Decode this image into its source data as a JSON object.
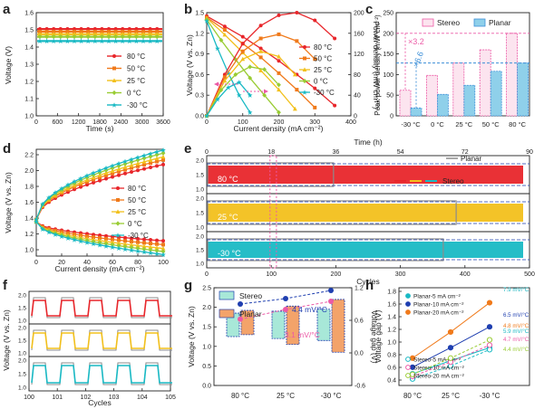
{
  "colors": {
    "80": "#e8262b",
    "50": "#f07a1b",
    "25": "#f2c01c",
    "0": "#99cc33",
    "-30": "#19b9c4",
    "stereo": "#ec5aa6",
    "planar": "#3d8fd8",
    "blue_dark": "#1f3fb0",
    "planar_grey": "#8c8c8c"
  },
  "chart_data": [
    {
      "panel": "a",
      "type": "line",
      "xlabel": "Time (s)",
      "ylabel": "Voltage (V)",
      "xlim": [
        0,
        3600
      ],
      "ylim": [
        1.0,
        1.6
      ],
      "xticks": [
        "0",
        "600",
        "1200",
        "1800",
        "2400",
        "3000",
        "3600"
      ],
      "yticks": [
        "1.0",
        "1.1",
        "1.2",
        "1.3",
        "1.4",
        "1.5",
        "1.6"
      ],
      "series": [
        {
          "name": "80 °C",
          "key": "80",
          "values": [
            1.505,
            1.505
          ]
        },
        {
          "name": "50 °C",
          "key": "50",
          "values": [
            1.49,
            1.49
          ]
        },
        {
          "name": "25 °C",
          "key": "25",
          "values": [
            1.475,
            1.475
          ]
        },
        {
          "name": "0 °C",
          "key": "0",
          "values": [
            1.46,
            1.46
          ]
        },
        {
          "name": "-30 °C",
          "key": "-30",
          "values": [
            1.435,
            1.435
          ]
        }
      ]
    },
    {
      "panel": "b",
      "type": "line",
      "xlabel": "Current density (mA cm⁻²)",
      "ylabel": "Voltage (V vs. Zn)",
      "y2label": "Power density (mW cm⁻²)",
      "xlim": [
        0,
        400
      ],
      "ylim": [
        0.0,
        1.5
      ],
      "y2lim": [
        0,
        200
      ],
      "xticks": [
        "0",
        "100",
        "200",
        "300",
        "400"
      ],
      "yticks": [
        "0.0",
        "0.3",
        "0.6",
        "0.9",
        "1.2",
        "1.5"
      ],
      "y2ticks": [
        "0",
        "40",
        "80",
        "120",
        "160",
        "200"
      ],
      "voltage_series": [
        {
          "key": "80",
          "x": [
            0,
            50,
            100,
            150,
            200,
            250,
            300,
            355
          ],
          "y": [
            1.45,
            1.3,
            1.15,
            0.98,
            0.8,
            0.6,
            0.4,
            0.15
          ]
        },
        {
          "key": "50",
          "x": [
            0,
            50,
            100,
            150,
            200,
            250,
            300
          ],
          "y": [
            1.43,
            1.25,
            1.05,
            0.85,
            0.62,
            0.38,
            0.12
          ]
        },
        {
          "key": "25",
          "x": [
            0,
            50,
            100,
            150,
            200,
            245
          ],
          "y": [
            1.42,
            1.18,
            0.92,
            0.66,
            0.38,
            0.1
          ]
        },
        {
          "key": "0",
          "x": [
            0,
            40,
            80,
            120,
            160,
            200
          ],
          "y": [
            1.4,
            1.1,
            0.82,
            0.55,
            0.3,
            0.05
          ]
        },
        {
          "key": "-30",
          "x": [
            0,
            30,
            60,
            90,
            120
          ],
          "y": [
            1.38,
            0.98,
            0.62,
            0.3,
            0.05
          ]
        }
      ],
      "power_series": [
        {
          "key": "80",
          "x": [
            0,
            50,
            100,
            150,
            200,
            250,
            300,
            355
          ],
          "y": [
            0,
            80,
            140,
            175,
            195,
            200,
            185,
            150
          ]
        },
        {
          "key": "50",
          "x": [
            0,
            50,
            100,
            150,
            200,
            250,
            300
          ],
          "y": [
            0,
            75,
            125,
            150,
            158,
            145,
            110
          ]
        },
        {
          "key": "25",
          "x": [
            0,
            50,
            100,
            150,
            200,
            245
          ],
          "y": [
            0,
            68,
            110,
            125,
            115,
            80
          ]
        },
        {
          "key": "0",
          "x": [
            0,
            40,
            80,
            120,
            160,
            200
          ],
          "y": [
            0,
            50,
            80,
            95,
            90,
            60
          ]
        },
        {
          "key": "-30",
          "x": [
            0,
            30,
            60,
            90,
            120
          ],
          "y": [
            0,
            32,
            55,
            65,
            40
          ]
        }
      ],
      "legend": [
        "80 °C",
        "50 °C",
        "25 °C",
        "0 °C",
        "-30 °C"
      ]
    },
    {
      "panel": "c",
      "type": "bar",
      "ylabel": "Peak power density (mW cm⁻²)",
      "categories": [
        "-30 °C",
        "0 °C",
        "25 °C",
        "50 °C",
        "80 °C"
      ],
      "ylim": [
        0,
        250
      ],
      "yticks": [
        "0",
        "50",
        "100",
        "150",
        "200",
        "250"
      ],
      "series": [
        {
          "name": "Stereo",
          "values": [
            62,
            98,
            128,
            160,
            200
          ]
        },
        {
          "name": "Planar",
          "values": [
            19,
            52,
            74,
            108,
            128
          ]
        }
      ],
      "annotations": [
        "×3.2",
        "×6.6"
      ]
    },
    {
      "panel": "d",
      "type": "line",
      "xlabel": "Current density (mA cm⁻²)",
      "ylabel": "Voltage (V vs. Zn)",
      "xlim": [
        0,
        100
      ],
      "ylim": [
        0.9,
        2.3
      ],
      "xticks": [
        "0",
        "20",
        "40",
        "60",
        "80",
        "100"
      ],
      "yticks": [
        "1.0",
        "1.2",
        "1.4",
        "1.6",
        "1.8",
        "2.0",
        "2.2"
      ],
      "series": [
        {
          "name": "80 °C",
          "key": "80",
          "charge_end": 2.1,
          "discharge_end": 1.1
        },
        {
          "name": "50 °C",
          "key": "50",
          "charge_end": 2.16,
          "discharge_end": 1.05
        },
        {
          "name": "25 °C",
          "key": "25",
          "charge_end": 2.2,
          "discharge_end": 1.0
        },
        {
          "name": "0 °C",
          "key": "0",
          "charge_end": 2.25,
          "discharge_end": 0.96
        },
        {
          "name": "-30 °C",
          "key": "-30",
          "charge_end": 2.29,
          "discharge_end": 0.92
        }
      ]
    },
    {
      "panel": "e",
      "type": "line",
      "xlabel": "Cycles",
      "x2label": "Time (h)",
      "xlim": [
        0,
        500
      ],
      "xticks": [
        "0",
        "100",
        "200",
        "300",
        "400",
        "500"
      ],
      "x2ticks": [
        "0",
        "18",
        "36",
        "54",
        "72",
        "90"
      ],
      "yticks": [
        "1.0",
        "1.5",
        "2.0"
      ],
      "rows": [
        {
          "label": "80 °C",
          "key": "80",
          "planar_end": 195
        },
        {
          "label": "25 °C",
          "key": "25",
          "planar_end": 385
        },
        {
          "label": "-30 °C",
          "key": "-30",
          "planar_end": 365
        }
      ],
      "legend": [
        "Planar",
        "Stereo"
      ]
    },
    {
      "panel": "f",
      "type": "line",
      "xlabel": "Cycles",
      "ylabel": "Voltage (V vs. Zn)",
      "xlim": [
        100,
        105
      ],
      "xticks": [
        "100",
        "101",
        "102",
        "103",
        "104",
        "105"
      ],
      "yticks": [
        "1.0",
        "1.5",
        "2.0"
      ],
      "rows": [
        {
          "key": "80"
        },
        {
          "key": "25"
        },
        {
          "key": "-30"
        }
      ]
    },
    {
      "panel": "g",
      "type": "bar",
      "ylabel": "Voltage (V vs. Zn)",
      "y2label": "Voltage gap (V)",
      "categories": [
        "80 °C",
        "25 °C",
        "-30 °C"
      ],
      "ylim": [
        0.0,
        2.5
      ],
      "y2lim": [
        -0.6,
        1.2
      ],
      "yticks": [
        "0.0",
        "0.5",
        "1.0",
        "1.5",
        "2.0",
        "2.5"
      ],
      "y2ticks": [
        "-0.6",
        "0.0",
        "0.6",
        "1.2"
      ],
      "series": [
        {
          "name": "Stereo",
          "low": [
            1.25,
            1.2,
            1.15
          ],
          "high": [
            1.85,
            1.9,
            1.95
          ],
          "gap": [
            0.62,
            0.8,
            0.95
          ]
        },
        {
          "name": "Planar",
          "low": [
            1.3,
            1.05,
            0.85
          ],
          "high": [
            1.92,
            2.03,
            2.2
          ],
          "gap": [
            0.9,
            1.0,
            1.15
          ]
        }
      ],
      "annotations": [
        "4.4 mV/°C",
        "3.1 mV/°C"
      ]
    },
    {
      "panel": "h",
      "type": "scatter",
      "ylabel": "Voltage gap (V)",
      "categories": [
        "80 °C",
        "25 °C",
        "-30 °C"
      ],
      "ylim": [
        0.3,
        1.8
      ],
      "yticks": [
        "0.4",
        "0.6",
        "0.8",
        "1.0",
        "1.2",
        "1.4",
        "1.6",
        "1.8"
      ],
      "series": [
        {
          "name": "Planar-5 mA cm⁻²",
          "color": "#19b9c4",
          "values": [
            0.48,
            0.68,
            0.88
          ],
          "fill": true
        },
        {
          "name": "Planar-10 mA cm⁻²",
          "color": "#1f3fb0",
          "values": [
            0.58,
            0.88,
            1.2
          ],
          "fill": true
        },
        {
          "name": "Planar-20 mA cm⁻²",
          "color": "#f07a1b",
          "values": [
            0.72,
            1.12,
            1.57
          ],
          "fill": true
        },
        {
          "name": "Stereo-5 mA cm⁻²",
          "color": "#19b9c4",
          "values": [
            0.4,
            0.6,
            0.85
          ],
          "fill": false
        },
        {
          "name": "Stereo-10 mA cm⁻²",
          "color": "#ec5aa6",
          "values": [
            0.44,
            0.66,
            0.92
          ],
          "fill": false
        },
        {
          "name": "Stereo-20 mA cm⁻²",
          "color": "#99cc33",
          "values": [
            0.47,
            0.72,
            1.0
          ],
          "fill": false
        }
      ],
      "slopes": [
        "7.9 mV/°C",
        "6.5 mV/°C",
        "4.8 mV/°C",
        "5.9 mV/°C",
        "4.7 mV/°C",
        "4.4 mV/°C"
      ]
    }
  ]
}
